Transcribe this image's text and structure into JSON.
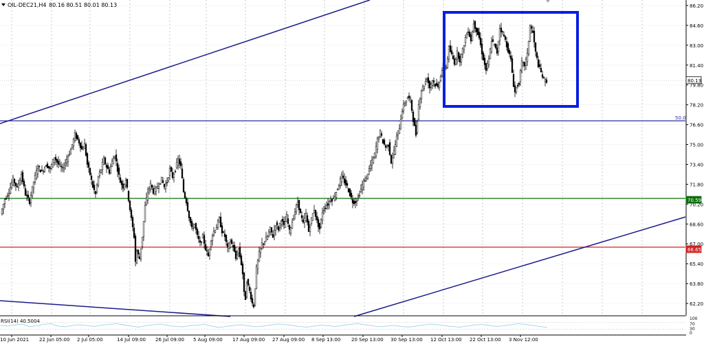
{
  "header": {
    "symbol": "OIL-DEC21,H4",
    "ohlc": "80.16 80.51 80.01 80.13",
    "menu_icon": "triangle-down-icon"
  },
  "chart_data": {
    "type": "candlestick",
    "title": "OIL-DEC21,H4",
    "ylim": [
      61.2,
      86.8
    ],
    "price_ticks": [
      "86.20",
      "84.60",
      "83.00",
      "81.40",
      "79.80",
      "78.20",
      "76.60",
      "75.00",
      "73.40",
      "71.80",
      "70.20",
      "68.60",
      "67.00",
      "65.40",
      "63.80",
      "62.20"
    ],
    "x_ticks": [
      "10 Jun 2021",
      "22 Jun 05:00",
      "2 Jul 05:00",
      "14 Jul 09:00",
      "26 Jul 09:00",
      "5 Aug 09:00",
      "17 Aug 09:00",
      "27 Aug 09:00",
      "8 Sep 13:00",
      "20 Sep 13:00",
      "30 Sep 13:00",
      "12 Oct 13:00",
      "22 Oct 13:00",
      "3 Nov 12:00"
    ],
    "close_path": [
      [
        0,
        69.4
      ],
      [
        6,
        70.6
      ],
      [
        12,
        71.2
      ],
      [
        18,
        72.2
      ],
      [
        24,
        71.5
      ],
      [
        30,
        72.6
      ],
      [
        36,
        71.0
      ],
      [
        42,
        70.4
      ],
      [
        48,
        72.0
      ],
      [
        54,
        73.2
      ],
      [
        60,
        72.8
      ],
      [
        66,
        73.4
      ],
      [
        72,
        73.0
      ],
      [
        78,
        74.0
      ],
      [
        84,
        73.4
      ],
      [
        90,
        73.0
      ],
      [
        96,
        73.8
      ],
      [
        102,
        74.6
      ],
      [
        108,
        75.8
      ],
      [
        114,
        75.2
      ],
      [
        118,
        74.6
      ],
      [
        122,
        75.0
      ],
      [
        126,
        73.4
      ],
      [
        130,
        72.6
      ],
      [
        134,
        71.6
      ],
      [
        138,
        71.0
      ],
      [
        142,
        72.4
      ],
      [
        146,
        73.0
      ],
      [
        150,
        73.8
      ],
      [
        154,
        73.2
      ],
      [
        158,
        72.8
      ],
      [
        162,
        73.6
      ],
      [
        166,
        74.2
      ],
      [
        170,
        73.0
      ],
      [
        174,
        72.0
      ],
      [
        178,
        71.6
      ],
      [
        182,
        72.2
      ],
      [
        186,
        70.6
      ],
      [
        190,
        69.0
      ],
      [
        194,
        67.6
      ],
      [
        196,
        65.6
      ],
      [
        198,
        66.4
      ],
      [
        202,
        65.8
      ],
      [
        206,
        67.6
      ],
      [
        210,
        70.0
      ],
      [
        214,
        71.2
      ],
      [
        218,
        71.8
      ],
      [
        222,
        71.2
      ],
      [
        226,
        71.4
      ],
      [
        230,
        71.8
      ],
      [
        234,
        72.2
      ],
      [
        238,
        71.6
      ],
      [
        242,
        72.0
      ],
      [
        246,
        73.0
      ],
      [
        250,
        72.4
      ],
      [
        254,
        73.0
      ],
      [
        258,
        73.8
      ],
      [
        262,
        73.2
      ],
      [
        266,
        71.2
      ],
      [
        270,
        70.4
      ],
      [
        274,
        69.2
      ],
      [
        278,
        68.2
      ],
      [
        282,
        68.6
      ],
      [
        286,
        67.6
      ],
      [
        290,
        67.0
      ],
      [
        294,
        67.6
      ],
      [
        298,
        66.6
      ],
      [
        302,
        66.0
      ],
      [
        306,
        67.4
      ],
      [
        310,
        68.0
      ],
      [
        314,
        68.4
      ],
      [
        318,
        69.0
      ],
      [
        322,
        68.0
      ],
      [
        326,
        67.6
      ],
      [
        330,
        66.6
      ],
      [
        334,
        67.2
      ],
      [
        338,
        66.8
      ],
      [
        342,
        65.8
      ],
      [
        346,
        66.6
      ],
      [
        350,
        65.4
      ],
      [
        352,
        64.6
      ],
      [
        354,
        63.0
      ],
      [
        356,
        62.6
      ],
      [
        358,
        64.0
      ],
      [
        362,
        63.2
      ],
      [
        366,
        62.2
      ],
      [
        368,
        62.0
      ],
      [
        372,
        65.0
      ],
      [
        376,
        66.2
      ],
      [
        380,
        67.0
      ],
      [
        384,
        67.2
      ],
      [
        388,
        67.6
      ],
      [
        392,
        68.2
      ],
      [
        396,
        67.6
      ],
      [
        400,
        68.6
      ],
      [
        404,
        68.2
      ],
      [
        408,
        69.0
      ],
      [
        412,
        68.4
      ],
      [
        416,
        69.2
      ],
      [
        420,
        68.0
      ],
      [
        424,
        68.8
      ],
      [
        428,
        69.6
      ],
      [
        432,
        70.4
      ],
      [
        436,
        69.4
      ],
      [
        440,
        68.6
      ],
      [
        444,
        69.4
      ],
      [
        448,
        68.0
      ],
      [
        452,
        69.0
      ],
      [
        456,
        69.8
      ],
      [
        460,
        68.8
      ],
      [
        464,
        68.2
      ],
      [
        468,
        69.6
      ],
      [
        472,
        70.0
      ],
      [
        476,
        70.2
      ],
      [
        480,
        70.6
      ],
      [
        484,
        70.6
      ],
      [
        488,
        71.2
      ],
      [
        492,
        71.8
      ],
      [
        496,
        72.4
      ],
      [
        500,
        72.0
      ],
      [
        504,
        71.6
      ],
      [
        508,
        71.0
      ],
      [
        512,
        70.4
      ],
      [
        516,
        70.4
      ],
      [
        520,
        70.8
      ],
      [
        524,
        71.4
      ],
      [
        528,
        72.0
      ],
      [
        532,
        72.4
      ],
      [
        536,
        73.0
      ],
      [
        540,
        73.6
      ],
      [
        544,
        74.2
      ],
      [
        548,
        75.4
      ],
      [
        552,
        76.0
      ],
      [
        556,
        75.2
      ],
      [
        560,
        74.8
      ],
      [
        564,
        75.0
      ],
      [
        568,
        73.6
      ],
      [
        572,
        74.4
      ],
      [
        576,
        75.6
      ],
      [
        580,
        76.4
      ],
      [
        584,
        77.8
      ],
      [
        588,
        78.4
      ],
      [
        592,
        78.8
      ],
      [
        596,
        78.6
      ],
      [
        600,
        77.0
      ],
      [
        604,
        75.8
      ],
      [
        608,
        78.2
      ],
      [
        612,
        79.4
      ],
      [
        616,
        79.8
      ],
      [
        620,
        80.4
      ],
      [
        624,
        79.6
      ],
      [
        628,
        80.2
      ],
      [
        632,
        79.8
      ],
      [
        636,
        79.6
      ],
      [
        640,
        80.6
      ],
      [
        644,
        81.4
      ],
      [
        648,
        81.2
      ],
      [
        652,
        82.8
      ],
      [
        656,
        82.2
      ],
      [
        660,
        81.6
      ],
      [
        664,
        82.4
      ],
      [
        668,
        81.8
      ],
      [
        672,
        82.6
      ],
      [
        676,
        83.6
      ],
      [
        680,
        84.2
      ],
      [
        684,
        83.4
      ],
      [
        688,
        84.8
      ],
      [
        692,
        84.2
      ],
      [
        696,
        83.6
      ],
      [
        700,
        82.4
      ],
      [
        704,
        81.4
      ],
      [
        706,
        81.0
      ],
      [
        710,
        81.8
      ],
      [
        714,
        83.4
      ],
      [
        718,
        83.0
      ],
      [
        722,
        82.4
      ],
      [
        726,
        84.4
      ],
      [
        730,
        84.0
      ],
      [
        734,
        83.4
      ],
      [
        738,
        82.6
      ],
      [
        742,
        81.8
      ],
      [
        746,
        79.8
      ],
      [
        748,
        79.2
      ],
      [
        750,
        79.6
      ],
      [
        754,
        80.0
      ],
      [
        758,
        81.6
      ],
      [
        762,
        81.4
      ],
      [
        766,
        82.2
      ],
      [
        770,
        84.6
      ],
      [
        774,
        84.0
      ],
      [
        778,
        82.4
      ],
      [
        782,
        81.4
      ],
      [
        786,
        80.8
      ],
      [
        790,
        80.2
      ],
      [
        794,
        80.13
      ]
    ],
    "last_price": "80.13",
    "level_labels": {
      "fib": "50.0",
      "green": "70.59",
      "red": "66.65"
    },
    "rsi": {
      "label": "RSI(14) 40.5004",
      "ticks": [
        "100",
        "70",
        "30",
        "0"
      ],
      "values": [
        52,
        48,
        55,
        60,
        45,
        50,
        58,
        62,
        48,
        44,
        52,
        56,
        50,
        46,
        54,
        58,
        62,
        55,
        48,
        42,
        50,
        56,
        60,
        52,
        46,
        44,
        50,
        54,
        58,
        48,
        40,
        46,
        52,
        56,
        50,
        44,
        48,
        54,
        60,
        58,
        52,
        46,
        42,
        48,
        54,
        50,
        46,
        52,
        58,
        62,
        56,
        50,
        44,
        48,
        52,
        46,
        42,
        48,
        54,
        60,
        56,
        50,
        46,
        42,
        48,
        54,
        58,
        52,
        46,
        50,
        56,
        62,
        58,
        52,
        46,
        40
      ]
    },
    "colors": {
      "trendline": "#1a1a8c",
      "box": "#0a1ee0",
      "green_level": "#0a6e0a",
      "red_level": "#d22222",
      "fib_level": "#2a2aa0",
      "rsi_line": "#8ecae6",
      "candle": "#000000"
    }
  }
}
